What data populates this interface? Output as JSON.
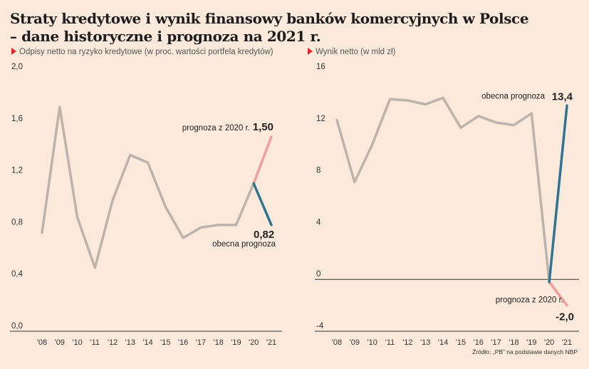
{
  "header": {
    "title_line1": "Straty kredytowe i wynik finansowy banków komercyjnych w Polsce",
    "title_line2": "– dane historyczne i prognoza na 2021 r."
  },
  "source": "Źródło: „PB” na podstawie danych NBP",
  "colors": {
    "background": "#fbeadb",
    "history": "#bdb3ab",
    "current_forecast": "#2f7591",
    "forecast_2020": "#ef9d9a",
    "marker": "#e3262b"
  },
  "chart_data": [
    {
      "type": "line",
      "subtitle": "Odpisy netto na ryzyko kredytowe (w proc. wartości portfela kredytów)",
      "categories": [
        "'08",
        "'09",
        "'10",
        "'11",
        "'12",
        "'13",
        "'14",
        "'15",
        "'16",
        "'17",
        "'18",
        "'19",
        "'20",
        "'21"
      ],
      "ylim": [
        0,
        2.0
      ],
      "yticks": [
        0,
        0.4,
        0.8,
        1.2,
        1.6,
        2.0
      ],
      "ytick_labels": [
        "0,0",
        "0,4",
        "0,8",
        "1,2",
        "1,6",
        "2,0"
      ],
      "grid": false,
      "series": [
        {
          "role": "history",
          "x": [
            "'08",
            "'09",
            "'10",
            "'11",
            "'12",
            "'13",
            "'14",
            "'15",
            "'16",
            "'17",
            "'18",
            "'19",
            "'20"
          ],
          "values": [
            0.76,
            1.73,
            0.88,
            0.49,
            1.01,
            1.36,
            1.3,
            0.96,
            0.72,
            0.8,
            0.82,
            0.82,
            1.14
          ]
        },
        {
          "role": "current_forecast",
          "x": [
            "'20",
            "'21"
          ],
          "values": [
            1.14,
            0.82
          ]
        },
        {
          "role": "forecast_2020",
          "x": [
            "'20",
            "'21"
          ],
          "values": [
            1.14,
            1.5
          ]
        }
      ],
      "annotations": [
        {
          "role": "forecast_2020",
          "label": "prognoza z 2020 r.",
          "value_label": "1,50"
        },
        {
          "role": "current_forecast",
          "label": "obecna prognoza",
          "value_label": "0,82"
        }
      ]
    },
    {
      "type": "line",
      "subtitle": "Wynik netto (w mld zł)",
      "categories": [
        "'08",
        "'09",
        "'10",
        "'11",
        "'12",
        "'13",
        "'14",
        "'15",
        "'16",
        "'17",
        "'18",
        "'19",
        "'20",
        "'21"
      ],
      "ylim": [
        -4,
        16
      ],
      "yticks": [
        -4,
        0,
        4,
        8,
        12,
        16
      ],
      "ytick_labels": [
        "-4",
        "0",
        "4",
        "8",
        "12",
        "16"
      ],
      "grid": false,
      "zero_line": true,
      "series": [
        {
          "role": "history",
          "x": [
            "'08",
            "'09",
            "'10",
            "'11",
            "'12",
            "'13",
            "'14",
            "'15",
            "'16",
            "'17",
            "'18",
            "'19",
            "'20"
          ],
          "values": [
            12.3,
            7.5,
            10.4,
            13.9,
            13.8,
            13.5,
            14.0,
            11.7,
            12.6,
            12.1,
            11.9,
            12.8,
            -0.2
          ]
        },
        {
          "role": "current_forecast",
          "x": [
            "'20",
            "'21"
          ],
          "values": [
            -0.2,
            13.4
          ]
        },
        {
          "role": "forecast_2020",
          "x": [
            "'20",
            "'21"
          ],
          "values": [
            -0.2,
            -2.0
          ]
        }
      ],
      "annotations": [
        {
          "role": "current_forecast",
          "label": "obecna prognoza",
          "value_label": "13,4"
        },
        {
          "role": "forecast_2020",
          "label": "prognoza z 2020 r.",
          "value_label": "-2,0"
        }
      ]
    }
  ]
}
